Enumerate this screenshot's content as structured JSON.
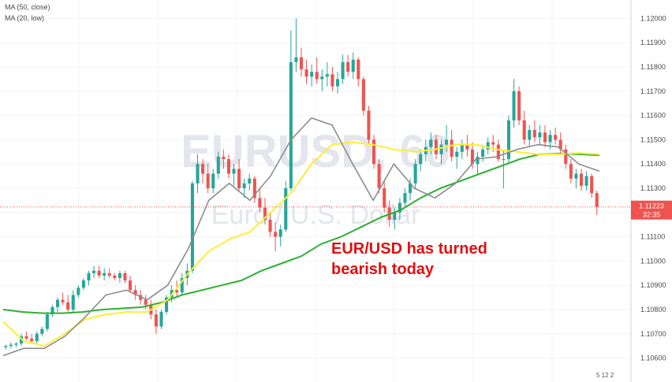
{
  "legend": {
    "ma50": "MA (50, close)",
    "ma20": "MA (20, low)"
  },
  "watermark": {
    "symbol": "EURUSD, 60",
    "name": "Euro / U.S. Dollar"
  },
  "annotation": {
    "line1": "EUR/USD has turned",
    "line2": "bearish today"
  },
  "price_marker": {
    "price": "1.11223",
    "countdown": "32:35"
  },
  "footer": {
    "text": "5 12 2"
  },
  "colors": {
    "up": "#26a69a",
    "down": "#ef5350",
    "ma50": "#2eaf32",
    "ma20": "#ffee33",
    "ma_extra": "#8c8c8c",
    "annotation": "#e01010",
    "price_label_bg": "#ef5350"
  },
  "chart_data": {
    "type": "candlestick",
    "symbol": "EURUSD",
    "timeframe": "60",
    "ylim": [
      1.1055,
      1.1205
    ],
    "y_ticks": [
      1.106,
      1.107,
      1.108,
      1.109,
      1.11,
      1.111,
      1.112,
      1.113,
      1.114,
      1.115,
      1.116,
      1.117,
      1.118,
      1.119,
      1.12
    ],
    "last_price": 1.11223,
    "candles": [
      [
        1.10645,
        1.10655,
        1.10635,
        1.1065
      ],
      [
        1.1065,
        1.10665,
        1.1064,
        1.10655
      ],
      [
        1.10655,
        1.10665,
        1.10645,
        1.1066
      ],
      [
        1.1066,
        1.107,
        1.1065,
        1.1069
      ],
      [
        1.1069,
        1.1071,
        1.10675,
        1.1068
      ],
      [
        1.1068,
        1.107,
        1.1066,
        1.1067
      ],
      [
        1.1067,
        1.1071,
        1.1066,
        1.107
      ],
      [
        1.107,
        1.1073,
        1.1069,
        1.1072
      ],
      [
        1.1072,
        1.1079,
        1.1071,
        1.1078
      ],
      [
        1.1078,
        1.1082,
        1.1077,
        1.1081
      ],
      [
        1.1081,
        1.1085,
        1.1079,
        1.1084
      ],
      [
        1.1084,
        1.1087,
        1.1082,
        1.1083
      ],
      [
        1.1083,
        1.1086,
        1.1079,
        1.108
      ],
      [
        1.108,
        1.1088,
        1.1079,
        1.1086
      ],
      [
        1.1086,
        1.109,
        1.1085,
        1.1089
      ],
      [
        1.1089,
        1.1093,
        1.1088,
        1.1092
      ],
      [
        1.1092,
        1.1096,
        1.109,
        1.1095
      ],
      [
        1.1095,
        1.1098,
        1.1093,
        1.1096
      ],
      [
        1.1096,
        1.1098,
        1.1093,
        1.1094
      ],
      [
        1.1094,
        1.1097,
        1.1092,
        1.1095
      ],
      [
        1.1095,
        1.1097,
        1.1093,
        1.1094
      ],
      [
        1.1094,
        1.1095,
        1.1092,
        1.1093
      ],
      [
        1.1093,
        1.1096,
        1.1091,
        1.1095
      ],
      [
        1.1095,
        1.1096,
        1.1091,
        1.1092
      ],
      [
        1.1092,
        1.1094,
        1.1087,
        1.1088
      ],
      [
        1.1088,
        1.109,
        1.1084,
        1.1086
      ],
      [
        1.1086,
        1.1088,
        1.1082,
        1.1084
      ],
      [
        1.1084,
        1.1086,
        1.108,
        1.1082
      ],
      [
        1.1082,
        1.1084,
        1.1076,
        1.1078
      ],
      [
        1.1078,
        1.108,
        1.107,
        1.1073
      ],
      [
        1.1073,
        1.108,
        1.1072,
        1.1079
      ],
      [
        1.1079,
        1.1086,
        1.1078,
        1.1085
      ],
      [
        1.1085,
        1.109,
        1.1083,
        1.1088
      ],
      [
        1.1088,
        1.1092,
        1.1085,
        1.1087
      ],
      [
        1.1087,
        1.1095,
        1.1086,
        1.1093
      ],
      [
        1.1093,
        1.1099,
        1.109,
        1.1096
      ],
      [
        1.1096,
        1.1133,
        1.1095,
        1.1132
      ],
      [
        1.1132,
        1.1144,
        1.1128,
        1.114
      ],
      [
        1.114,
        1.1142,
        1.1132,
        1.1136
      ],
      [
        1.1136,
        1.114,
        1.1128,
        1.113
      ],
      [
        1.113,
        1.1138,
        1.1128,
        1.1136
      ],
      [
        1.1136,
        1.1145,
        1.1134,
        1.1143
      ],
      [
        1.1143,
        1.1146,
        1.1138,
        1.1142
      ],
      [
        1.1142,
        1.1144,
        1.1134,
        1.1136
      ],
      [
        1.1136,
        1.114,
        1.1131,
        1.1138
      ],
      [
        1.1138,
        1.1142,
        1.1129,
        1.113
      ],
      [
        1.113,
        1.1134,
        1.1126,
        1.1132
      ],
      [
        1.1132,
        1.1136,
        1.1129,
        1.1134
      ],
      [
        1.1134,
        1.1135,
        1.1124,
        1.1126
      ],
      [
        1.1126,
        1.113,
        1.112,
        1.1122
      ],
      [
        1.1122,
        1.1126,
        1.1115,
        1.1117
      ],
      [
        1.1117,
        1.112,
        1.111,
        1.1112
      ],
      [
        1.1112,
        1.1116,
        1.1104,
        1.111
      ],
      [
        1.111,
        1.1115,
        1.1106,
        1.1113
      ],
      [
        1.1113,
        1.1133,
        1.1112,
        1.113
      ],
      [
        1.113,
        1.1195,
        1.1129,
        1.1182
      ],
      [
        1.1182,
        1.12,
        1.1178,
        1.1184
      ],
      [
        1.1184,
        1.1188,
        1.1176,
        1.1179
      ],
      [
        1.1179,
        1.1183,
        1.1173,
        1.1176
      ],
      [
        1.1176,
        1.1181,
        1.1172,
        1.1178
      ],
      [
        1.1178,
        1.1184,
        1.1173,
        1.1175
      ],
      [
        1.1175,
        1.1179,
        1.117,
        1.1176
      ],
      [
        1.1176,
        1.1182,
        1.1172,
        1.1177
      ],
      [
        1.1177,
        1.118,
        1.117,
        1.1172
      ],
      [
        1.1172,
        1.1178,
        1.1169,
        1.1175
      ],
      [
        1.1175,
        1.1185,
        1.1173,
        1.1182
      ],
      [
        1.1182,
        1.1185,
        1.1176,
        1.1178
      ],
      [
        1.1178,
        1.1186,
        1.1175,
        1.1183
      ],
      [
        1.1183,
        1.1184,
        1.1172,
        1.1175
      ],
      [
        1.1175,
        1.1176,
        1.116,
        1.1162
      ],
      [
        1.1162,
        1.1164,
        1.1148,
        1.115
      ],
      [
        1.115,
        1.1152,
        1.1138,
        1.114
      ],
      [
        1.114,
        1.1142,
        1.1128,
        1.113
      ],
      [
        1.113,
        1.1133,
        1.112,
        1.1122
      ],
      [
        1.1122,
        1.1125,
        1.1114,
        1.1117
      ],
      [
        1.1117,
        1.1122,
        1.1113,
        1.112
      ],
      [
        1.112,
        1.1126,
        1.1117,
        1.1124
      ],
      [
        1.1124,
        1.113,
        1.1122,
        1.1128
      ],
      [
        1.1128,
        1.1134,
        1.1125,
        1.1132
      ],
      [
        1.1132,
        1.1142,
        1.113,
        1.114
      ],
      [
        1.114,
        1.1146,
        1.1137,
        1.1144
      ],
      [
        1.1144,
        1.115,
        1.1141,
        1.1147
      ],
      [
        1.1147,
        1.1153,
        1.1144,
        1.115
      ],
      [
        1.115,
        1.1152,
        1.1142,
        1.1144
      ],
      [
        1.1144,
        1.115,
        1.114,
        1.1148
      ],
      [
        1.1148,
        1.1156,
        1.1145,
        1.115
      ],
      [
        1.115,
        1.1154,
        1.1141,
        1.1143
      ],
      [
        1.1143,
        1.1147,
        1.1138,
        1.1145
      ],
      [
        1.1145,
        1.115,
        1.1142,
        1.1148
      ],
      [
        1.1148,
        1.1152,
        1.1143,
        1.1146
      ],
      [
        1.1146,
        1.1149,
        1.1138,
        1.114
      ],
      [
        1.114,
        1.1145,
        1.1136,
        1.1143
      ],
      [
        1.1143,
        1.1148,
        1.1141,
        1.1146
      ],
      [
        1.1146,
        1.1151,
        1.1144,
        1.1149
      ],
      [
        1.1149,
        1.1152,
        1.1145,
        1.1148
      ],
      [
        1.1148,
        1.115,
        1.1141,
        1.1142
      ],
      [
        1.1142,
        1.1146,
        1.113,
        1.1142
      ],
      [
        1.1142,
        1.116,
        1.114,
        1.1158
      ],
      [
        1.1158,
        1.1175,
        1.1155,
        1.117
      ],
      [
        1.117,
        1.1172,
        1.1156,
        1.1158
      ],
      [
        1.1158,
        1.1162,
        1.1148,
        1.115
      ],
      [
        1.115,
        1.1156,
        1.1147,
        1.1154
      ],
      [
        1.1154,
        1.1158,
        1.1149,
        1.1151
      ],
      [
        1.1151,
        1.1156,
        1.1148,
        1.1153
      ],
      [
        1.1153,
        1.1156,
        1.1147,
        1.1149
      ],
      [
        1.1149,
        1.1154,
        1.1146,
        1.1152
      ],
      [
        1.1152,
        1.1155,
        1.1148,
        1.115
      ],
      [
        1.115,
        1.1153,
        1.1144,
        1.1146
      ],
      [
        1.1146,
        1.1148,
        1.1138,
        1.114
      ],
      [
        1.114,
        1.1142,
        1.1132,
        1.1134
      ],
      [
        1.1134,
        1.1138,
        1.113,
        1.1136
      ],
      [
        1.1136,
        1.1138,
        1.1129,
        1.1131
      ],
      [
        1.1131,
        1.1137,
        1.1129,
        1.1135
      ],
      [
        1.1135,
        1.1136,
        1.1126,
        1.1128
      ],
      [
        1.1128,
        1.1129,
        1.1119,
        1.11223
      ]
    ],
    "ma50": [
      1.108,
      1.1079,
      1.10785,
      1.10785,
      1.1079,
      1.108,
      1.10805,
      1.1081,
      1.1083,
      1.1086,
      1.1088,
      1.109,
      1.1092,
      1.1096,
      1.1099,
      1.1102,
      1.1107,
      1.111,
      1.1114,
      1.1118,
      1.1121,
      1.1126,
      1.113,
      1.1133,
      1.1136,
      1.1139,
      1.1142,
      1.1144,
      1.11443,
      1.1144,
      1.11436
    ],
    "ma20": [
      1.1075,
      1.1067,
      1.1065,
      1.107,
      1.1076,
      1.1078,
      1.1079,
      1.1079,
      1.1084,
      1.1095,
      1.1104,
      1.1109,
      1.1112,
      1.112,
      1.1128,
      1.114,
      1.1148,
      1.1149,
      1.1148,
      1.1146,
      1.1145,
      1.1146,
      1.1148,
      1.1148,
      1.1146,
      1.1145,
      1.1144,
      1.1144,
      1.11445,
      1.1144
    ],
    "ma_extra": [
      1.1061,
      1.1064,
      1.1064,
      1.1069,
      1.1077,
      1.1086,
      1.1088,
      1.1084,
      1.109,
      1.1105,
      1.1125,
      1.1132,
      1.1125,
      1.1135,
      1.115,
      1.1159,
      1.1156,
      1.114,
      1.1125,
      1.114,
      1.113,
      1.1126,
      1.1132,
      1.1142,
      1.1143,
      1.1146,
      1.1148,
      1.1147,
      1.114,
      1.1137
    ]
  }
}
